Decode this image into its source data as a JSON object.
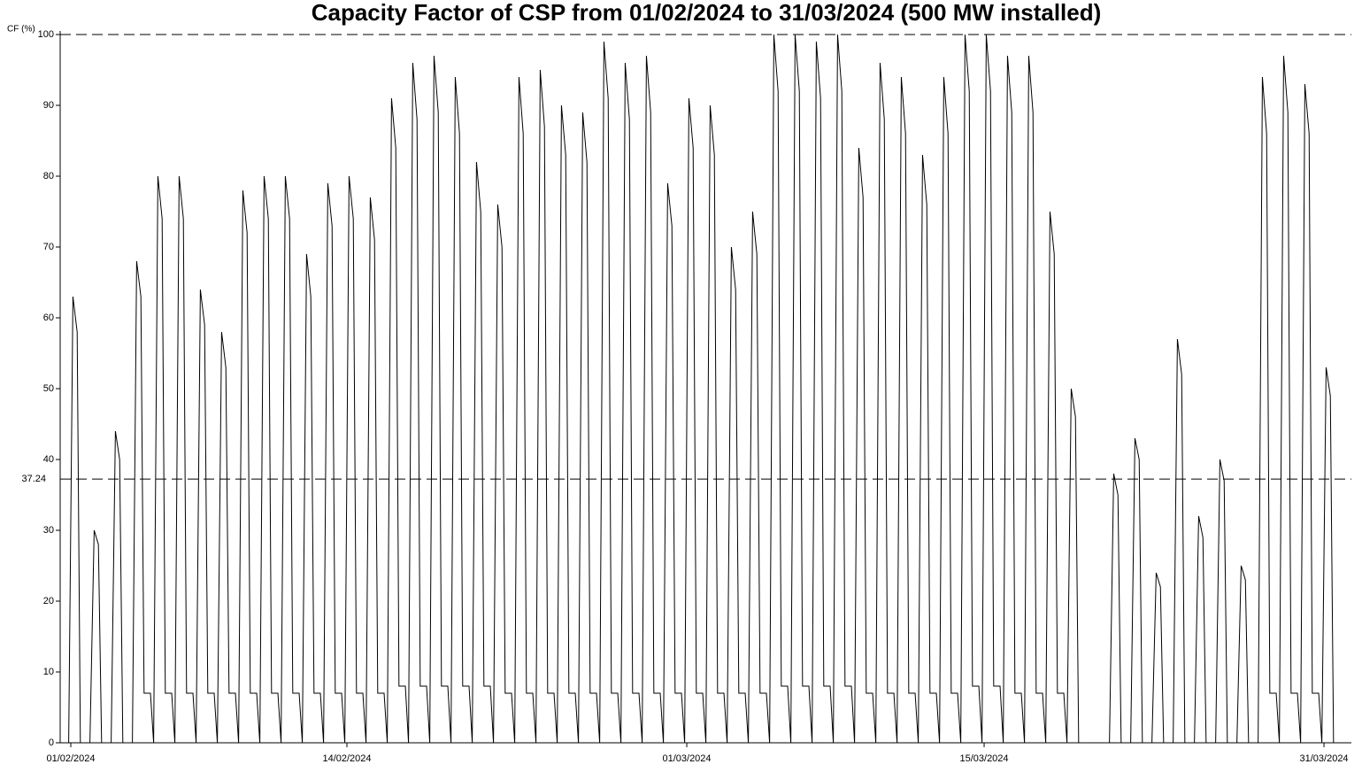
{
  "chart_data": {
    "type": "line",
    "title": "Capacity Factor of CSP from 01/02/2024 to 31/03/2024 (500 MW installed)",
    "y_label": "CF (%)",
    "xlim": [
      -0.5,
      60.29
    ],
    "xticks": [
      {
        "value": 0,
        "label": "01/02/2024"
      },
      {
        "value": 13,
        "label": "14/02/2024"
      },
      {
        "value": 29,
        "label": "01/03/2024"
      },
      {
        "value": 43,
        "label": "15/03/2024"
      },
      {
        "value": 59,
        "label": "31/03/2024"
      }
    ],
    "ylim": [
      0,
      100
    ],
    "yticks": [
      0,
      10,
      20,
      30,
      40,
      50,
      60,
      70,
      80,
      90,
      100
    ],
    "ref_lines": [
      100,
      {
        "value": 37.24,
        "label": "37.24"
      }
    ],
    "x": [
      -0.1,
      0.1,
      0.3,
      0.45,
      0.75,
      0.9,
      1.1,
      1.3,
      1.45,
      1.75,
      1.9,
      2.1,
      2.3,
      2.45,
      2.75,
      2.9,
      3.1,
      3.3,
      3.45,
      3.75,
      3.9,
      4.1,
      4.3,
      4.45,
      4.75,
      4.9,
      5.1,
      5.3,
      5.45,
      5.75,
      5.9,
      6.1,
      6.3,
      6.45,
      6.75,
      6.9,
      7.1,
      7.3,
      7.45,
      7.75,
      7.9,
      8.1,
      8.3,
      8.45,
      8.75,
      8.9,
      9.1,
      9.3,
      9.45,
      9.75,
      9.9,
      10.1,
      10.3,
      10.45,
      10.75,
      10.9,
      11.1,
      11.3,
      11.45,
      11.75,
      11.9,
      12.1,
      12.3,
      12.45,
      12.75,
      12.9,
      13.1,
      13.3,
      13.45,
      13.75,
      13.9,
      14.1,
      14.3,
      14.45,
      14.75,
      14.9,
      15.1,
      15.3,
      15.45,
      15.75,
      15.9,
      16.1,
      16.3,
      16.45,
      16.75,
      16.9,
      17.1,
      17.3,
      17.45,
      17.75,
      17.9,
      18.1,
      18.3,
      18.45,
      18.75,
      18.9,
      19.1,
      19.3,
      19.45,
      19.75,
      19.9,
      20.1,
      20.3,
      20.45,
      20.75,
      20.9,
      21.1,
      21.3,
      21.45,
      21.75,
      21.9,
      22.1,
      22.3,
      22.45,
      22.75,
      22.9,
      23.1,
      23.3,
      23.45,
      23.75,
      23.9,
      24.1,
      24.3,
      24.45,
      24.75,
      24.9,
      25.1,
      25.3,
      25.45,
      25.75,
      25.9,
      26.1,
      26.3,
      26.45,
      26.75,
      26.9,
      27.1,
      27.3,
      27.45,
      27.75,
      27.9,
      28.1,
      28.3,
      28.45,
      28.75,
      28.9,
      29.1,
      29.3,
      29.45,
      29.75,
      29.9,
      30.1,
      30.3,
      30.45,
      30.75,
      30.9,
      31.1,
      31.3,
      31.45,
      31.75,
      31.9,
      32.1,
      32.3,
      32.45,
      32.75,
      32.9,
      33.1,
      33.3,
      33.45,
      33.75,
      33.9,
      34.1,
      34.3,
      34.45,
      34.75,
      34.9,
      35.1,
      35.3,
      35.45,
      35.75,
      35.9,
      36.1,
      36.3,
      36.45,
      36.75,
      36.9,
      37.1,
      37.3,
      37.45,
      37.75,
      37.9,
      38.1,
      38.3,
      38.45,
      38.75,
      38.9,
      39.1,
      39.3,
      39.45,
      39.75,
      39.9,
      40.1,
      40.3,
      40.45,
      40.75,
      40.9,
      41.1,
      41.3,
      41.45,
      41.75,
      41.9,
      42.1,
      42.3,
      42.45,
      42.75,
      42.9,
      43.1,
      43.3,
      43.45,
      43.75,
      43.9,
      44.1,
      44.3,
      44.45,
      44.75,
      44.9,
      45.1,
      45.3,
      45.45,
      45.75,
      45.9,
      46.1,
      46.3,
      46.45,
      46.75,
      46.9,
      47.1,
      47.3,
      47.45,
      47.75,
      47.9,
      48.1,
      48.3,
      48.45,
      48.75,
      48.9,
      49.1,
      49.3,
      49.45,
      49.75,
      49.9,
      50.1,
      50.3,
      50.45,
      50.75,
      50.9,
      51.1,
      51.3,
      51.45,
      51.75,
      51.9,
      52.1,
      52.3,
      52.45,
      52.75,
      52.9,
      53.1,
      53.3,
      53.45,
      53.75,
      53.9,
      54.1,
      54.3,
      54.45,
      54.75,
      54.9,
      55.1,
      55.3,
      55.45,
      55.75,
      55.9,
      56.1,
      56.3,
      56.45,
      56.75,
      56.9,
      57.1,
      57.3,
      57.45,
      57.75,
      57.9,
      58.1,
      58.3,
      58.45,
      58.75,
      58.9,
      59.1,
      59.3,
      59.45,
      59.75
    ],
    "series": [
      {
        "color": "#000000",
        "values": [
          0,
          63,
          58,
          0,
          0,
          0,
          30,
          28,
          0,
          0,
          0,
          44,
          40,
          0,
          0,
          0,
          68,
          63,
          7,
          7,
          0,
          80,
          74,
          7,
          7,
          0,
          80,
          74,
          7,
          7,
          0,
          64,
          59,
          7,
          7,
          0,
          58,
          53,
          7,
          7,
          0,
          78,
          72,
          7,
          7,
          0,
          80,
          74,
          7,
          7,
          0,
          80,
          74,
          7,
          7,
          0,
          69,
          63,
          7,
          7,
          0,
          79,
          73,
          7,
          7,
          0,
          80,
          74,
          7,
          7,
          0,
          77,
          71,
          7,
          7,
          0,
          91,
          84,
          8,
          8,
          0,
          96,
          88,
          8,
          8,
          0,
          97,
          89,
          8,
          8,
          0,
          94,
          86,
          8,
          8,
          0,
          82,
          75,
          8,
          8,
          0,
          76,
          70,
          7,
          7,
          0,
          94,
          86,
          7,
          7,
          0,
          95,
          87,
          7,
          7,
          0,
          90,
          83,
          7,
          7,
          0,
          89,
          82,
          7,
          7,
          0,
          99,
          91,
          7,
          7,
          0,
          96,
          88,
          7,
          7,
          0,
          97,
          89,
          7,
          7,
          0,
          79,
          73,
          7,
          7,
          0,
          91,
          84,
          7,
          7,
          0,
          90,
          83,
          7,
          7,
          0,
          70,
          64,
          7,
          7,
          0,
          75,
          69,
          7,
          7,
          0,
          100,
          92,
          8,
          8,
          0,
          100,
          92,
          8,
          8,
          0,
          99,
          91,
          8,
          8,
          0,
          100,
          92,
          8,
          8,
          0,
          84,
          77,
          7,
          7,
          0,
          96,
          88,
          7,
          7,
          0,
          94,
          86,
          7,
          7,
          0,
          83,
          76,
          7,
          7,
          0,
          94,
          86,
          7,
          7,
          0,
          100,
          92,
          8,
          8,
          0,
          100,
          92,
          8,
          8,
          0,
          97,
          89,
          7,
          7,
          0,
          97,
          89,
          7,
          7,
          0,
          75,
          69,
          7,
          7,
          0,
          50,
          46,
          0,
          0,
          0,
          0,
          0,
          0,
          0,
          0,
          38,
          35,
          0,
          0,
          0,
          43,
          40,
          0,
          0,
          0,
          24,
          22,
          0,
          0,
          0,
          57,
          52,
          0,
          0,
          0,
          32,
          29,
          0,
          0,
          0,
          40,
          37,
          0,
          0,
          0,
          25,
          23,
          0,
          0,
          0,
          94,
          86,
          7,
          7,
          0,
          97,
          89,
          7,
          7,
          0,
          93,
          86,
          7,
          7,
          0,
          53,
          49,
          0,
          0
        ]
      }
    ]
  }
}
